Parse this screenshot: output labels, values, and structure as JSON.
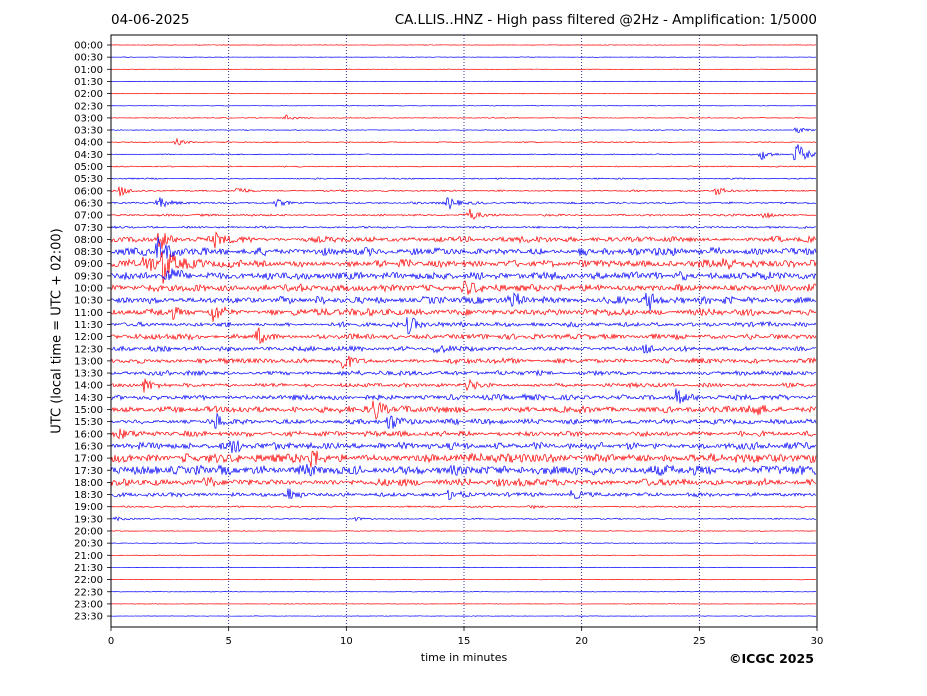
{
  "header": {
    "date": "04-06-2025",
    "title": "CA.LLIS..HNZ - High pass filtered @2Hz - Amplification: 1/5000"
  },
  "footer": {
    "copyright": "©ICGC 2025"
  },
  "colors": {
    "red_trace": "#ff0000",
    "blue_trace": "#0000ff",
    "axes": "#000000",
    "grid": "#000080"
  },
  "chart_data": {
    "type": "line",
    "xlabel": "time in minutes",
    "ylabel": "UTC (local time = UTC + 02:00)",
    "xlim": [
      0,
      30
    ],
    "x_ticks": [
      0,
      5,
      10,
      15,
      20,
      25,
      30
    ],
    "x_grid": [
      5,
      10,
      15,
      20,
      25
    ],
    "trace_color_cycle": [
      "red",
      "blue"
    ],
    "rows": [
      "00:00",
      "00:30",
      "01:00",
      "01:30",
      "02:00",
      "02:30",
      "03:00",
      "03:30",
      "04:00",
      "04:30",
      "05:00",
      "05:30",
      "06:00",
      "06:30",
      "07:00",
      "07:30",
      "08:00",
      "08:30",
      "09:00",
      "09:30",
      "10:00",
      "10:30",
      "11:00",
      "11:30",
      "12:00",
      "12:30",
      "13:00",
      "13:30",
      "14:00",
      "14:30",
      "15:00",
      "15:30",
      "16:00",
      "16:30",
      "17:00",
      "17:30",
      "18:00",
      "18:30",
      "19:00",
      "19:30",
      "20:00",
      "20:30",
      "21:00",
      "21:30",
      "22:00",
      "22:30",
      "23:00",
      "23:30"
    ],
    "noise_level": [
      0.2,
      0.2,
      0.2,
      0.2,
      0.2,
      0.2,
      0.3,
      0.3,
      0.4,
      0.4,
      0.4,
      0.5,
      0.6,
      0.8,
      0.8,
      0.8,
      2.2,
      3.0,
      3.0,
      3.2,
      2.8,
      2.8,
      2.6,
      1.8,
      2.0,
      1.8,
      2.0,
      1.8,
      1.5,
      2.0,
      2.4,
      2.0,
      2.0,
      2.6,
      3.4,
      3.6,
      2.8,
      1.6,
      0.6,
      0.5,
      0.3,
      0.3,
      0.2,
      0.2,
      0.2,
      0.2,
      0.2,
      0.2
    ],
    "events": [
      {
        "row": 6,
        "minute": 7.4,
        "amp": 3
      },
      {
        "row": 7,
        "minute": 29.1,
        "amp": 4
      },
      {
        "row": 8,
        "minute": 2.8,
        "amp": 3
      },
      {
        "row": 9,
        "minute": 29.1,
        "amp": 14
      },
      {
        "row": 9,
        "minute": 27.6,
        "amp": 6
      },
      {
        "row": 12,
        "minute": 0.4,
        "amp": 6
      },
      {
        "row": 12,
        "minute": 5.4,
        "amp": 5
      },
      {
        "row": 12,
        "minute": 25.7,
        "amp": 5
      },
      {
        "row": 13,
        "minute": 2.0,
        "amp": 6
      },
      {
        "row": 13,
        "minute": 7.0,
        "amp": 4
      },
      {
        "row": 13,
        "minute": 14.3,
        "amp": 7
      },
      {
        "row": 14,
        "minute": 15.2,
        "amp": 7
      },
      {
        "row": 14,
        "minute": 27.8,
        "amp": 4
      },
      {
        "row": 16,
        "minute": 2.1,
        "amp": 10
      },
      {
        "row": 16,
        "minute": 4.4,
        "amp": 6
      },
      {
        "row": 17,
        "minute": 2.0,
        "amp": 12
      },
      {
        "row": 18,
        "minute": 2.2,
        "amp": 22
      },
      {
        "row": 18,
        "minute": 1.4,
        "amp": 10
      },
      {
        "row": 18,
        "minute": 26.0,
        "amp": 6
      },
      {
        "row": 19,
        "minute": 2.3,
        "amp": 9
      },
      {
        "row": 20,
        "minute": 15.0,
        "amp": 9
      },
      {
        "row": 21,
        "minute": 17.0,
        "amp": 8
      },
      {
        "row": 21,
        "minute": 22.8,
        "amp": 10
      },
      {
        "row": 22,
        "minute": 4.3,
        "amp": 10
      },
      {
        "row": 22,
        "minute": 2.6,
        "amp": 6
      },
      {
        "row": 23,
        "minute": 12.6,
        "amp": 10
      },
      {
        "row": 24,
        "minute": 6.2,
        "amp": 10
      },
      {
        "row": 25,
        "minute": 13.8,
        "amp": 6
      },
      {
        "row": 25,
        "minute": 22.7,
        "amp": 6
      },
      {
        "row": 26,
        "minute": 9.8,
        "amp": 10
      },
      {
        "row": 28,
        "minute": 1.4,
        "amp": 8
      },
      {
        "row": 28,
        "minute": 15.2,
        "amp": 6
      },
      {
        "row": 29,
        "minute": 24.0,
        "amp": 9
      },
      {
        "row": 30,
        "minute": 11.2,
        "amp": 12
      },
      {
        "row": 30,
        "minute": 27.2,
        "amp": 8
      },
      {
        "row": 31,
        "minute": 11.8,
        "amp": 10
      },
      {
        "row": 31,
        "minute": 4.5,
        "amp": 8
      },
      {
        "row": 32,
        "minute": 0.2,
        "amp": 6
      },
      {
        "row": 33,
        "minute": 5.1,
        "amp": 6
      },
      {
        "row": 34,
        "minute": 8.5,
        "amp": 12
      },
      {
        "row": 35,
        "minute": 8.2,
        "amp": 6
      },
      {
        "row": 36,
        "minute": 4.0,
        "amp": 5
      },
      {
        "row": 37,
        "minute": 7.5,
        "amp": 7
      },
      {
        "row": 37,
        "minute": 14.4,
        "amp": 6
      },
      {
        "row": 37,
        "minute": 19.6,
        "amp": 4
      },
      {
        "row": 38,
        "minute": 17.8,
        "amp": 2
      },
      {
        "row": 39,
        "minute": 0.2,
        "amp": 2
      },
      {
        "row": 39,
        "minute": 10.3,
        "amp": 2
      }
    ]
  }
}
